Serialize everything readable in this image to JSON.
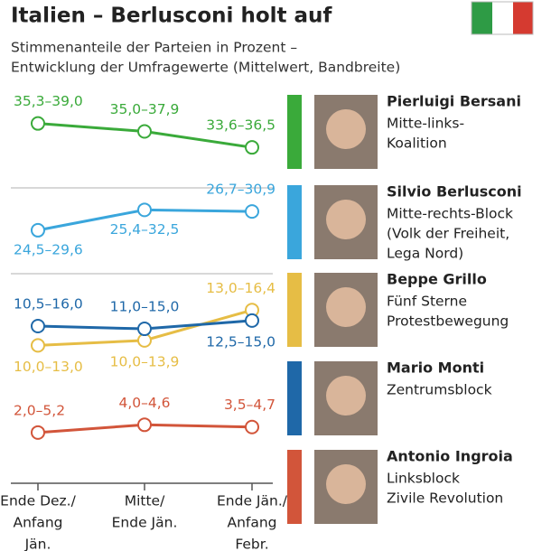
{
  "chart_data": {
    "type": "line",
    "title": "Italien – Berlusconi holt auf",
    "subtitle": [
      "Stimmenanteile der Parteien in Prozent –",
      "Entwicklung der Umfragewerte (Mittelwert, Bandbreite)"
    ],
    "categories": [
      [
        "Ende Dez./",
        "Anfang",
        "Jän."
      ],
      [
        "Mitte/",
        "Ende Jän."
      ],
      [
        "Ende Jän./",
        "Anfang",
        "Febr."
      ]
    ],
    "panels": [
      {
        "ylim": [
          31.5,
          39.5
        ]
      },
      {
        "ylim": [
          23,
          31
        ]
      },
      {
        "ylim": [
          -1,
          18
        ]
      }
    ],
    "series": [
      {
        "name": "Pierluigi Bersani",
        "description": [
          "Mitte-links-",
          "Koalition"
        ],
        "color": "#3aaa3a",
        "panel": 0,
        "low": [
          35.3,
          35.0,
          33.6
        ],
        "high": [
          39.0,
          37.9,
          36.5
        ],
        "value_labels": [
          "35,3–39,0",
          "35,0–37,9",
          "33,6–36,5"
        ]
      },
      {
        "name": "Silvio Berlusconi",
        "description": [
          "Mitte-rechts-Block",
          "(Volk der Freiheit,",
          "Lega Nord)"
        ],
        "color": "#3aa6dc",
        "panel": 1,
        "low": [
          24.5,
          25.4,
          26.7
        ],
        "high": [
          29.6,
          32.5,
          30.9
        ],
        "value_labels": [
          "24,5–29,6",
          "25,4–32,5",
          "26,7–30,9"
        ]
      },
      {
        "name": "Beppe Grillo",
        "description": [
          "Fünf Sterne",
          "Protestbewegung"
        ],
        "color": "#e6bd45",
        "panel": 2,
        "low": [
          10.0,
          10.0,
          13.0
        ],
        "high": [
          13.0,
          13.9,
          16.4
        ],
        "value_labels": [
          "10,0–13,0",
          "10,0–13,9",
          "13,0–16,4"
        ]
      },
      {
        "name": "Mario Monti",
        "description": [
          "Zentrumsblock"
        ],
        "color": "#1f68a8",
        "panel": 2,
        "low": [
          10.5,
          11.0,
          12.5
        ],
        "high": [
          16.0,
          15.0,
          15.0
        ],
        "value_labels": [
          "10,5–16,0",
          "11,0–15,0",
          "12,5–15,0"
        ]
      },
      {
        "name": "Antonio Ingroia",
        "description": [
          "Linksblock",
          "Zivile Revolution"
        ],
        "color": "#d2553a",
        "panel": 2,
        "low": [
          2.0,
          4.0,
          3.5
        ],
        "high": [
          5.2,
          4.6,
          4.7
        ],
        "value_labels": [
          "2,0–5,2",
          "4,0–4,6",
          "3,5–4,7"
        ]
      }
    ]
  }
}
